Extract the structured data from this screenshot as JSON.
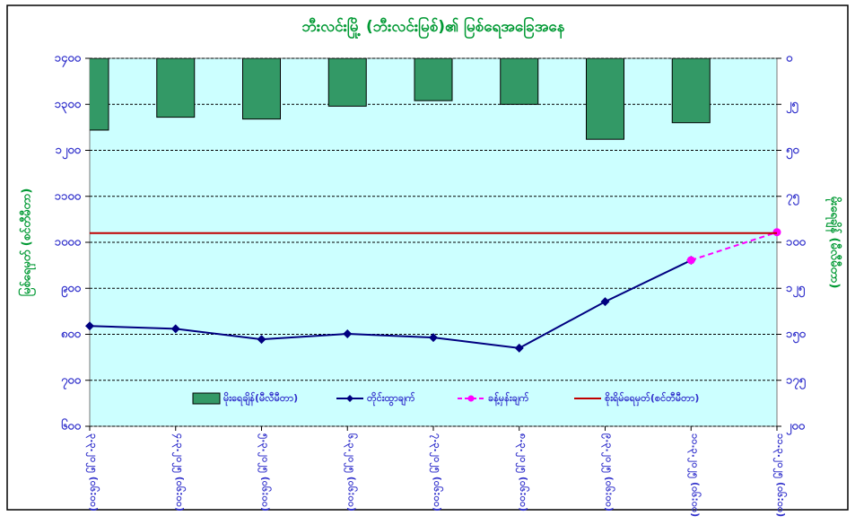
{
  "chart_data": {
    "type": "combo",
    "title": "ဘီးလင်းမြို့ (ဘီးလင်းမြစ်)၏ မြစ်ရေအခြေအနေ",
    "y_label": "မြစ်ရေမှတ် (စင်တီမီတာ)",
    "y2_label": "မိုးရေချိန် (မီလီမီတာ)",
    "categories": [
      "၃.၃.၂၀၂၅ (၀၆:၀၀)",
      "၄.၃.၂၀၂၅ (၀၆:၀၀)",
      "၅.၃.၂၀၂၅ (၀၆:၀၀)",
      "၆.၃.၂၀၂၅ (၀၆:၀၀)",
      "၇.၃.၂၀၂၅ (၀၆:၀၀)",
      "၈.၃.၂၀၂၅ (၀၆:၀၀)",
      "၉.၃.၂၀၂၅ (၀၆:၀၀)",
      "၁၀.၃.၂၀၂၅ (၀၆:၀၀)",
      "၁၁.၃.၂၀၂၅ (၀၆:၀၀)"
    ],
    "series": [
      {
        "name": "မိုးရေချိန်(မီလီမီတာ)",
        "type": "bar",
        "axis": "y2",
        "color": "#339966",
        "values": [
          39,
          32,
          33,
          26,
          23,
          25,
          44,
          35,
          null
        ]
      },
      {
        "name": "တိုင်းထွာချက်",
        "type": "line",
        "color": "#000080",
        "values": [
          818,
          812,
          789,
          801,
          793,
          770,
          871,
          961,
          null
        ]
      },
      {
        "name": "ခန့်မှန်းချက်",
        "type": "dashed",
        "color": "#ff00ff",
        "values": [
          null,
          null,
          null,
          null,
          null,
          null,
          null,
          961,
          1022
        ]
      },
      {
        "name": "စိုးရိမ်ရေမှတ်(စင်တီမီတာ)",
        "type": "hline",
        "color": "#c00000",
        "value": 1020
      }
    ],
    "ylim": [
      600,
      1400
    ],
    "yticks": [
      {
        "value": 600,
        "label": "၆၀၀"
      },
      {
        "value": 700,
        "label": "၇၀၀"
      },
      {
        "value": 800,
        "label": "၈၀၀"
      },
      {
        "value": 900,
        "label": "၉၀၀"
      },
      {
        "value": 1000,
        "label": "၁၀၀၀"
      },
      {
        "value": 1100,
        "label": "၁၁၀၀"
      },
      {
        "value": 1200,
        "label": "၁၂၀၀"
      },
      {
        "value": 1300,
        "label": "၁၃၀၀"
      },
      {
        "value": 1400,
        "label": "၁၄၀၀"
      }
    ],
    "y2lim": [
      0,
      200
    ],
    "y2_inverted": true,
    "y2ticks": [
      {
        "value": 0,
        "label": "၀"
      },
      {
        "value": 25,
        "label": "၂၅"
      },
      {
        "value": 50,
        "label": "၅၀"
      },
      {
        "value": 75,
        "label": "၇၅"
      },
      {
        "value": 100,
        "label": "၁၀၀"
      },
      {
        "value": 125,
        "label": "၁၂၅"
      },
      {
        "value": 150,
        "label": "၁၅၀"
      },
      {
        "value": 175,
        "label": "၁၇၅"
      },
      {
        "value": 200,
        "label": "၂၀၀"
      }
    ],
    "grid": true,
    "legend": "bottom"
  }
}
